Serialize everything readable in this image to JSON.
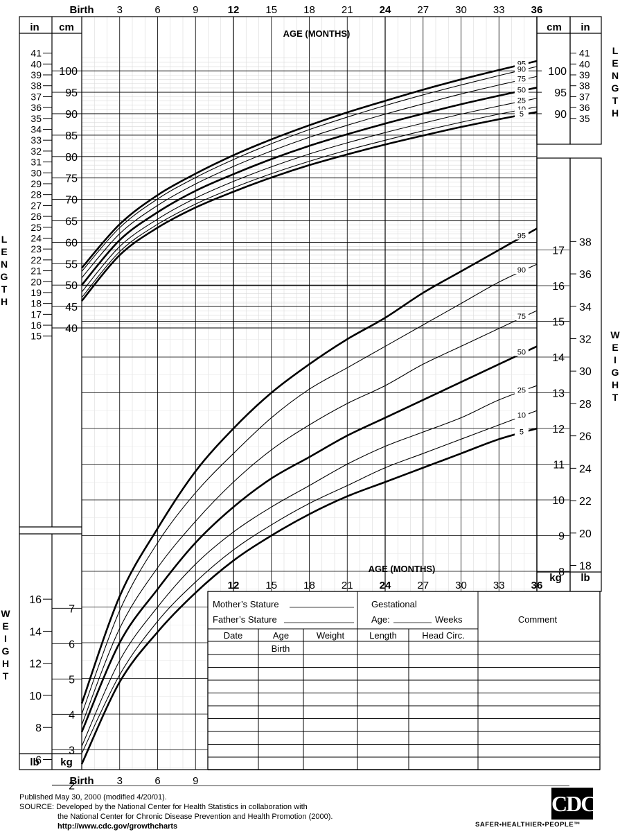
{
  "age_top_label": "AGE (MONTHS)",
  "age_mid_label": "AGE (MONTHS)",
  "age_ticks": [
    {
      "month": 0,
      "label": "Birth",
      "bold": true
    },
    {
      "month": 3,
      "label": "3",
      "bold": false
    },
    {
      "month": 6,
      "label": "6",
      "bold": false
    },
    {
      "month": 9,
      "label": "9",
      "bold": false
    },
    {
      "month": 12,
      "label": "12",
      "bold": true
    },
    {
      "month": 15,
      "label": "15",
      "bold": false
    },
    {
      "month": 18,
      "label": "18",
      "bold": false
    },
    {
      "month": 21,
      "label": "21",
      "bold": false
    },
    {
      "month": 24,
      "label": "24",
      "bold": true
    },
    {
      "month": 27,
      "label": "27",
      "bold": false
    },
    {
      "month": 30,
      "label": "30",
      "bold": false
    },
    {
      "month": 33,
      "label": "33",
      "bold": false
    },
    {
      "month": 36,
      "label": "36",
      "bold": true
    }
  ],
  "units": {
    "in": "in",
    "cm": "cm",
    "kg": "kg",
    "lb": "lb"
  },
  "side_labels": {
    "length": "LENGTH",
    "weight": "WEIGHT"
  },
  "record_table": {
    "mothers_stature": "Mother’s Stature",
    "fathers_stature": "Father’s Stature",
    "gestational": "Gestational",
    "age_weeks_prefix": "Age:",
    "age_weeks_suffix": "Weeks",
    "comment": "Comment",
    "columns": [
      "Date",
      "Age",
      "Weight",
      "Length",
      "Head  Circ."
    ],
    "first_row_age": "Birth"
  },
  "footer": {
    "published": "Published May 30, 2000 (modified 4/20/01).",
    "source_1": "SOURCE: Developed by the National Center for Health Statistics in collaboration with",
    "source_2": "the National Center for Chronic Disease Prevention and Health Promotion (2000).",
    "url": "http://www.cdc.gov/growthcharts"
  },
  "logo": {
    "text": "CDC",
    "tagline": "SAFER•HEALTHIER•PEOPLE™"
  },
  "chart_data": [
    {
      "type": "line",
      "title": "",
      "xlabel": "AGE (MONTHS)",
      "ylabel": "LENGTH (cm / in)",
      "xlim": [
        0,
        36
      ],
      "ylim_cm": [
        44,
        103
      ],
      "x": [
        0,
        3,
        6,
        9,
        12,
        15,
        18,
        21,
        24,
        27,
        30,
        33,
        36
      ],
      "series": [
        {
          "name": "95",
          "values": [
            54.0,
            64.2,
            71.0,
            76.0,
            80.3,
            84.0,
            87.3,
            90.3,
            93.0,
            95.6,
            98.0,
            100.2,
            102.3
          ]
        },
        {
          "name": "90",
          "values": [
            53.2,
            63.4,
            70.1,
            75.1,
            79.3,
            83.0,
            86.3,
            89.2,
            91.9,
            94.4,
            96.7,
            98.9,
            101.0
          ]
        },
        {
          "name": "75",
          "values": [
            51.7,
            62.0,
            68.6,
            73.6,
            77.7,
            81.3,
            84.5,
            87.3,
            89.9,
            92.3,
            94.6,
            96.7,
            98.7
          ]
        },
        {
          "name": "50",
          "values": [
            50.0,
            60.5,
            67.0,
            72.0,
            75.9,
            79.4,
            82.5,
            85.2,
            87.7,
            90.0,
            92.2,
            94.2,
            96.1
          ]
        },
        {
          "name": "25",
          "values": [
            48.4,
            59.0,
            65.4,
            70.3,
            74.2,
            77.6,
            80.6,
            83.2,
            85.6,
            87.8,
            89.9,
            91.8,
            93.6
          ]
        },
        {
          "name": "10",
          "values": [
            47.1,
            57.8,
            64.2,
            68.9,
            72.7,
            76.0,
            78.9,
            81.5,
            83.8,
            86.0,
            88.0,
            89.9,
            91.6
          ]
        },
        {
          "name": "5",
          "values": [
            46.3,
            57.0,
            63.4,
            68.1,
            71.8,
            75.1,
            78.0,
            80.5,
            82.8,
            84.9,
            86.9,
            88.7,
            90.4
          ]
        }
      ]
    },
    {
      "type": "line",
      "title": "",
      "xlabel": "AGE (MONTHS)",
      "ylabel": "WEIGHT (kg / lb)",
      "xlim": [
        0,
        36
      ],
      "ylim_kg": [
        1.5,
        18.5
      ],
      "x": [
        0,
        3,
        6,
        9,
        12,
        15,
        18,
        21,
        24,
        27,
        30,
        33,
        36
      ],
      "series": [
        {
          "name": "95",
          "values": [
            4.3,
            7.3,
            9.2,
            10.8,
            12.0,
            13.0,
            13.8,
            14.5,
            15.1,
            15.8,
            16.4,
            17.0,
            17.6
          ]
        },
        {
          "name": "90",
          "values": [
            4.0,
            6.9,
            8.8,
            10.2,
            11.3,
            12.3,
            13.1,
            13.7,
            14.3,
            14.9,
            15.5,
            16.1,
            16.6
          ]
        },
        {
          "name": "75",
          "values": [
            3.7,
            6.4,
            8.1,
            9.4,
            10.5,
            11.4,
            12.1,
            12.7,
            13.2,
            13.8,
            14.3,
            14.8,
            15.3
          ]
        },
        {
          "name": "50",
          "values": [
            3.5,
            6.0,
            7.5,
            8.8,
            9.8,
            10.6,
            11.2,
            11.8,
            12.3,
            12.8,
            13.3,
            13.8,
            14.3
          ]
        },
        {
          "name": "25",
          "values": [
            3.1,
            5.5,
            7.0,
            8.2,
            9.1,
            9.8,
            10.4,
            11.0,
            11.5,
            11.9,
            12.3,
            12.8,
            13.2
          ]
        },
        {
          "name": "10",
          "values": [
            2.9,
            5.1,
            6.6,
            7.7,
            8.6,
            9.3,
            9.9,
            10.4,
            10.9,
            11.3,
            11.7,
            12.1,
            12.5
          ]
        },
        {
          "name": "5",
          "values": [
            2.6,
            4.9,
            6.3,
            7.4,
            8.3,
            9.0,
            9.6,
            10.1,
            10.5,
            10.9,
            11.3,
            11.7,
            12.0
          ]
        }
      ]
    }
  ]
}
